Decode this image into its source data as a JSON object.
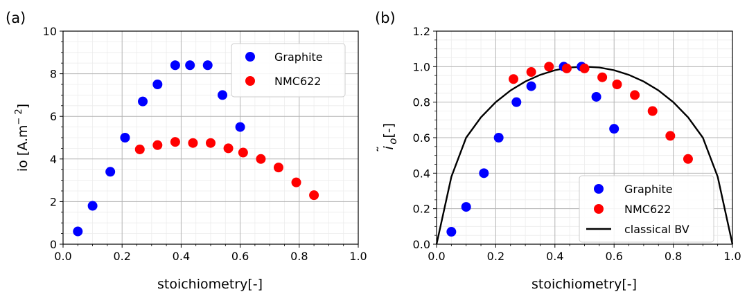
{
  "chart_data": [
    {
      "type": "scatter",
      "panel_label": "(a)",
      "xlabel": "stoichiometry[-]",
      "ylabel_base": "io [A.m",
      "ylabel_exp": "− 2",
      "ylabel_close": "]",
      "xlim": [
        0.0,
        1.0
      ],
      "ylim": [
        0,
        10
      ],
      "xticks": [
        "0.0",
        "0.2",
        "0.4",
        "0.6",
        "0.8",
        "1.0"
      ],
      "yticks": [
        "0",
        "2",
        "4",
        "6",
        "8",
        "10"
      ],
      "grid": true,
      "legend_position": "top-right",
      "series": [
        {
          "name": "Graphite",
          "color": "#0000ff",
          "x": [
            0.05,
            0.1,
            0.16,
            0.21,
            0.27,
            0.32,
            0.38,
            0.43,
            0.49,
            0.54,
            0.6
          ],
          "y": [
            0.6,
            1.8,
            3.4,
            5.0,
            6.7,
            7.5,
            8.4,
            8.4,
            8.4,
            7.0,
            5.5
          ]
        },
        {
          "name": "NMC622",
          "color": "#ff0000",
          "x": [
            0.26,
            0.32,
            0.38,
            0.44,
            0.5,
            0.56,
            0.61,
            0.67,
            0.73,
            0.79,
            0.85
          ],
          "y": [
            4.45,
            4.65,
            4.8,
            4.75,
            4.75,
            4.5,
            4.3,
            4.0,
            3.6,
            2.9,
            2.3
          ]
        }
      ]
    },
    {
      "type": "scatter",
      "panel_label": "(b)",
      "xlabel": "stoichiometry[-]",
      "ylabel_main": "i",
      "ylabel_accent": "˜",
      "ylabel_sub": "o",
      "ylabel_rest": "[-]",
      "xlim": [
        0.0,
        1.0
      ],
      "ylim": [
        0.0,
        1.2
      ],
      "xticks": [
        "0.0",
        "0.2",
        "0.4",
        "0.6",
        "0.8",
        "1.0"
      ],
      "yticks": [
        "0.0",
        "0.2",
        "0.4",
        "0.6",
        "0.8",
        "1.0",
        "1.2"
      ],
      "grid": true,
      "legend_position": "bottom-right",
      "series": [
        {
          "name": "Graphite",
          "color": "#0000ff",
          "x": [
            0.05,
            0.1,
            0.16,
            0.21,
            0.27,
            0.32,
            0.43,
            0.49,
            0.54,
            0.6
          ],
          "y": [
            0.07,
            0.21,
            0.4,
            0.6,
            0.8,
            0.89,
            1.0,
            1.0,
            0.83,
            0.65
          ]
        },
        {
          "name": "NMC622",
          "color": "#ff0000",
          "x": [
            0.26,
            0.32,
            0.38,
            0.44,
            0.5,
            0.56,
            0.61,
            0.67,
            0.73,
            0.79,
            0.85
          ],
          "y": [
            0.93,
            0.97,
            1.0,
            0.99,
            0.99,
            0.94,
            0.9,
            0.84,
            0.75,
            0.61,
            0.48
          ]
        }
      ],
      "curve": {
        "name": "classical BV",
        "color": "#000000",
        "x": [
          0.0,
          0.05,
          0.1,
          0.15,
          0.2,
          0.25,
          0.3,
          0.35,
          0.4,
          0.45,
          0.5,
          0.55,
          0.6,
          0.65,
          0.7,
          0.75,
          0.8,
          0.85,
          0.9,
          0.95,
          1.0
        ],
        "y": [
          0.0,
          0.3798,
          0.6,
          0.7141,
          0.8,
          0.866,
          0.9165,
          0.9539,
          0.9798,
          0.995,
          1.0,
          0.995,
          0.9798,
          0.9539,
          0.9165,
          0.866,
          0.8,
          0.7141,
          0.6,
          0.3798,
          0.0
        ]
      }
    }
  ]
}
